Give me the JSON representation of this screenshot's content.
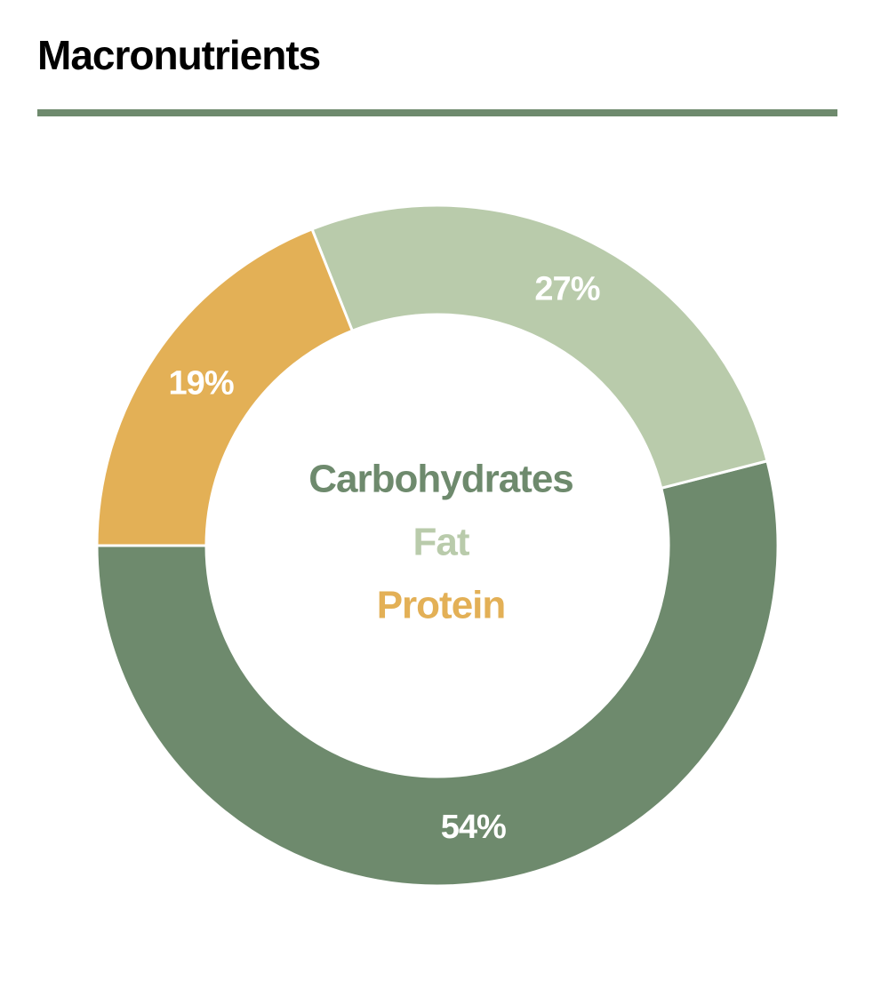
{
  "chart_data": {
    "type": "donut",
    "title": "Macronutrients",
    "categories": [
      "Carbohydrates",
      "Fat",
      "Protein"
    ],
    "values": [
      54,
      27,
      19
    ],
    "value_labels": [
      "54%",
      "27%",
      "19%"
    ],
    "colors": [
      "#6e8a6d",
      "#b9cbab",
      "#e3b056"
    ]
  }
}
